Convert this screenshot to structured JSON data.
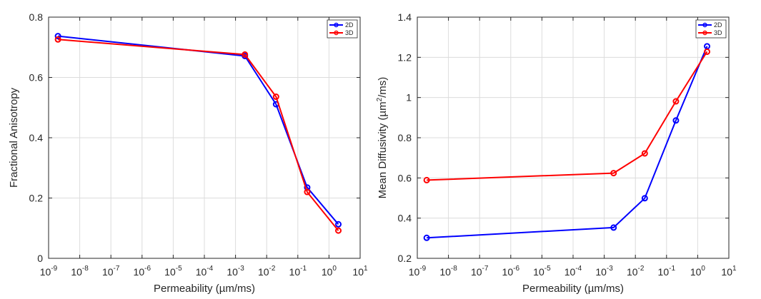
{
  "chart_data": [
    {
      "type": "line",
      "xscale": "log",
      "xlim": [
        1e-09,
        10
      ],
      "ylim": [
        0,
        0.8
      ],
      "xlabel": "Permeability (µm/ms)",
      "ylabel": "Fractional Anisotropy",
      "grid": true,
      "legend_position": "top-right",
      "yticks": [
        "0",
        "0.2",
        "0.4",
        "0.6",
        "0.8"
      ],
      "yticks_values": [
        0,
        0.2,
        0.4,
        0.6,
        0.8
      ],
      "xticks": [
        {
          "base": "10",
          "exp": "-9"
        },
        {
          "base": "10",
          "exp": "-8"
        },
        {
          "base": "10",
          "exp": "-7"
        },
        {
          "base": "10",
          "exp": "-6"
        },
        {
          "base": "10",
          "exp": "-5"
        },
        {
          "base": "10",
          "exp": "-4"
        },
        {
          "base": "10",
          "exp": "-3"
        },
        {
          "base": "10",
          "exp": "-2"
        },
        {
          "base": "10",
          "exp": "-1"
        },
        {
          "base": "10",
          "exp": "0"
        },
        {
          "base": "10",
          "exp": "1"
        }
      ],
      "xticks_values": [
        1e-09,
        1e-08,
        1e-07,
        1e-06,
        1e-05,
        0.0001,
        0.001,
        0.01,
        0.1,
        1,
        10
      ],
      "x": [
        2e-09,
        0.002,
        0.02,
        0.2,
        2
      ],
      "series": [
        {
          "name": "2D",
          "color": "#0000ff",
          "values": [
            0.737,
            0.671,
            0.511,
            0.235,
            0.113
          ]
        },
        {
          "name": "3D",
          "color": "#ff0000",
          "values": [
            0.726,
            0.676,
            0.536,
            0.22,
            0.092
          ]
        }
      ]
    },
    {
      "type": "line",
      "xscale": "log",
      "xlim": [
        1e-09,
        10
      ],
      "ylim": [
        0.2,
        1.4
      ],
      "xlabel": "Permeability (µm/ms)",
      "ylabel_parts": [
        "Mean Diffusivity (µm",
        "2",
        "/ms)"
      ],
      "grid": true,
      "legend_position": "top-right",
      "yticks": [
        "0.2",
        "0.4",
        "0.6",
        "0.8",
        "1",
        "1.2",
        "1.4"
      ],
      "yticks_values": [
        0.2,
        0.4,
        0.6,
        0.8,
        1.0,
        1.2,
        1.4
      ],
      "xticks": [
        {
          "base": "10",
          "exp": "-9"
        },
        {
          "base": "10",
          "exp": "-8"
        },
        {
          "base": "10",
          "exp": "-7"
        },
        {
          "base": "10",
          "exp": "-6"
        },
        {
          "base": "10",
          "exp": "-5"
        },
        {
          "base": "10",
          "exp": "-4"
        },
        {
          "base": "10",
          "exp": "-3"
        },
        {
          "base": "10",
          "exp": "-2"
        },
        {
          "base": "10",
          "exp": "-1"
        },
        {
          "base": "10",
          "exp": "0"
        },
        {
          "base": "10",
          "exp": "1"
        }
      ],
      "xticks_values": [
        1e-09,
        1e-08,
        1e-07,
        1e-06,
        1e-05,
        0.0001,
        0.001,
        0.01,
        0.1,
        1,
        10
      ],
      "x": [
        2e-09,
        0.002,
        0.02,
        0.2,
        2
      ],
      "series": [
        {
          "name": "2D",
          "color": "#0000ff",
          "values": [
            0.302,
            0.353,
            0.499,
            0.886,
            1.255
          ]
        },
        {
          "name": "3D",
          "color": "#ff0000",
          "values": [
            0.589,
            0.624,
            0.722,
            0.981,
            1.228
          ]
        }
      ]
    }
  ]
}
